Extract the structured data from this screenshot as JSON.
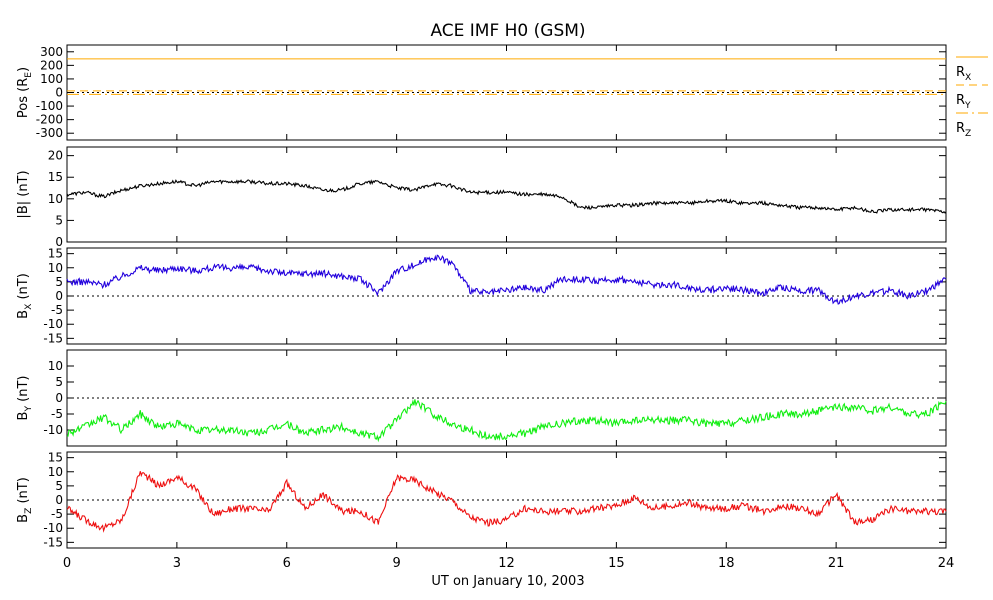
{
  "title": "ACE IMF H0 (GSM)",
  "x_axis": {
    "label": "UT on January 10, 2003",
    "min": 0,
    "max": 24,
    "ticks": [
      0,
      3,
      6,
      9,
      12,
      15,
      18,
      21,
      24
    ]
  },
  "colors": {
    "btot": "#000000",
    "bx": "#2200dd",
    "by": "#11ee11",
    "bz": "#ee1111",
    "position": "#ffaa00",
    "zero_line": "#000000"
  },
  "chart_data": [
    {
      "id": "pos",
      "type": "line",
      "ylabel": "Pos (RE)",
      "ylabel_main": "Pos (R",
      "ylabel_sub": "E",
      "ylabel_end": ")",
      "ylim": [
        -350,
        350
      ],
      "yticks": [
        300,
        200,
        100,
        0,
        -100,
        -200,
        -300
      ],
      "zero_line": true,
      "series": [
        {
          "name": "RX",
          "name_main": "R",
          "name_sub": "X",
          "dash": "none",
          "constant": 248
        },
        {
          "name": "RY",
          "name_main": "R",
          "name_sub": "Y",
          "dash": "8,5",
          "constant": 12
        },
        {
          "name": "RZ",
          "name_main": "R",
          "name_sub": "Z",
          "dash": "12,4,2,4",
          "constant": -14
        }
      ]
    },
    {
      "id": "btot",
      "type": "line",
      "ylabel": "|B| (nT)",
      "ylim": [
        0,
        22
      ],
      "yticks": [
        20,
        15,
        10,
        5,
        0
      ],
      "zero_line": false,
      "series": [
        {
          "name": "|B|",
          "color_key": "btot"
        }
      ],
      "x": [
        0,
        0.5,
        1,
        1.5,
        2,
        2.5,
        3,
        3.5,
        4,
        4.5,
        5,
        5.5,
        6,
        6.5,
        7,
        7.5,
        8,
        8.5,
        9,
        9.5,
        10,
        10.5,
        11,
        11.5,
        12,
        12.5,
        13,
        13.5,
        14,
        14.5,
        15,
        15.5,
        16,
        16.5,
        17,
        17.5,
        18,
        18.5,
        19,
        19.5,
        20,
        20.5,
        21,
        21.5,
        22,
        22.5,
        23,
        23.5,
        24
      ],
      "y": [
        11,
        11.5,
        10.5,
        12,
        13,
        13.5,
        14,
        13,
        14,
        14,
        14,
        13.5,
        13.5,
        13,
        12,
        12,
        13.5,
        14,
        12.5,
        12,
        13.5,
        13,
        11.5,
        11.5,
        11.5,
        11,
        11,
        10.5,
        8,
        8,
        8.5,
        8.5,
        9,
        9,
        9,
        9.5,
        9.5,
        9,
        9,
        8.5,
        8,
        8,
        7.5,
        8,
        7,
        7.5,
        7.5,
        7.5,
        7
      ]
    },
    {
      "id": "bx",
      "type": "line",
      "ylabel": "BX (nT)",
      "ylabel_main": "B",
      "ylabel_sub": "X",
      "ylabel_end": " (nT)",
      "ylim": [
        -17,
        17
      ],
      "yticks": [
        15,
        10,
        5,
        0,
        -5,
        -10,
        -15
      ],
      "zero_line": true,
      "series": [
        {
          "name": "BX",
          "color_key": "bx"
        }
      ],
      "x": [
        0,
        0.5,
        1,
        1.5,
        2,
        2.5,
        3,
        3.5,
        4,
        4.5,
        5,
        5.5,
        6,
        6.5,
        7,
        7.5,
        8,
        8.5,
        9,
        9.5,
        10,
        10.5,
        11,
        11.5,
        12,
        12.5,
        13,
        13.5,
        14,
        14.5,
        15,
        15.5,
        16,
        16.5,
        17,
        17.5,
        18,
        18.5,
        19,
        19.5,
        20,
        20.5,
        21,
        21.5,
        22,
        22.5,
        23,
        23.5,
        24
      ],
      "y": [
        5,
        5,
        4,
        7,
        10,
        9,
        10,
        9,
        10,
        10,
        10,
        9,
        8,
        8,
        8,
        7,
        6,
        1,
        9,
        11,
        14,
        12,
        2,
        1,
        2,
        3,
        2,
        6,
        6,
        5,
        6,
        5,
        4,
        4,
        3,
        2,
        3,
        2,
        1,
        3,
        2,
        2,
        -2,
        0,
        1,
        2,
        0,
        2,
        6
      ]
    },
    {
      "id": "by",
      "type": "line",
      "ylabel": "BY (nT)",
      "ylabel_main": "B",
      "ylabel_sub": "Y",
      "ylabel_end": " (nT)",
      "ylim": [
        -15,
        15
      ],
      "yticks": [
        10,
        5,
        0,
        -5,
        -10
      ],
      "zero_line": true,
      "series": [
        {
          "name": "BY",
          "color_key": "by"
        }
      ],
      "x": [
        0,
        0.5,
        1,
        1.5,
        2,
        2.5,
        3,
        3.5,
        4,
        4.5,
        5,
        5.5,
        6,
        6.5,
        7,
        7.5,
        8,
        8.5,
        9,
        9.5,
        10,
        10.5,
        11,
        11.5,
        12,
        12.5,
        13,
        13.5,
        14,
        14.5,
        15,
        15.5,
        16,
        16.5,
        17,
        17.5,
        18,
        18.5,
        19,
        19.5,
        20,
        20.5,
        21,
        21.5,
        22,
        22.5,
        23,
        23.5,
        24
      ],
      "y": [
        -11,
        -9,
        -6,
        -10,
        -5,
        -9,
        -8,
        -10,
        -10,
        -10,
        -11,
        -10,
        -8,
        -11,
        -10,
        -9,
        -11,
        -12,
        -7,
        -1,
        -5,
        -8,
        -10,
        -12,
        -12,
        -11,
        -9,
        -8,
        -7,
        -7,
        -8,
        -7,
        -7,
        -7,
        -7,
        -8,
        -8,
        -7,
        -6,
        -5,
        -5,
        -4,
        -3,
        -3,
        -4,
        -3,
        -5,
        -5,
        -1
      ]
    },
    {
      "id": "bz",
      "type": "line",
      "ylabel": "BZ (nT)",
      "ylabel_main": "B",
      "ylabel_sub": "Z",
      "ylabel_end": " (nT)",
      "ylim": [
        -17,
        17
      ],
      "yticks": [
        15,
        10,
        5,
        0,
        -5,
        -10,
        -15
      ],
      "zero_line": true,
      "series": [
        {
          "name": "BZ",
          "color_key": "bz"
        }
      ],
      "x": [
        0,
        0.5,
        1,
        1.5,
        2,
        2.5,
        3,
        3.5,
        4,
        4.5,
        5,
        5.5,
        6,
        6.5,
        7,
        7.5,
        8,
        8.5,
        9,
        9.5,
        10,
        10.5,
        11,
        11.5,
        12,
        12.5,
        13,
        13.5,
        14,
        14.5,
        15,
        15.5,
        16,
        16.5,
        17,
        17.5,
        18,
        18.5,
        19,
        19.5,
        20,
        20.5,
        21,
        21.5,
        22,
        22.5,
        23,
        23.5,
        24
      ],
      "y": [
        -3,
        -7,
        -10,
        -7,
        10,
        5,
        8,
        4,
        -5,
        -3,
        -3,
        -4,
        6,
        -3,
        2,
        -4,
        -4,
        -8,
        8,
        7,
        3,
        0,
        -6,
        -8,
        -7,
        -3,
        -4,
        -4,
        -4,
        -3,
        -2,
        1,
        -3,
        -2,
        -1,
        -3,
        -3,
        -2,
        -4,
        -2,
        -3,
        -5,
        2,
        -8,
        -7,
        -3,
        -4,
        -4,
        -4
      ]
    }
  ]
}
